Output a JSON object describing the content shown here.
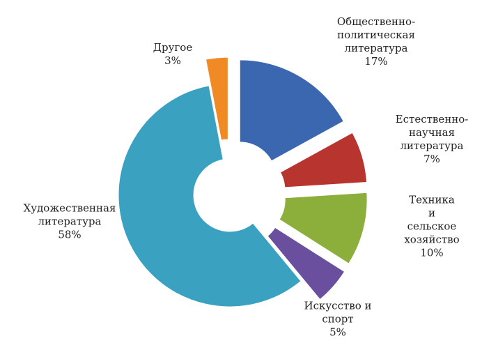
{
  "chart_data": {
    "type": "donut",
    "categories": [
      "Общественно-\nполитическая\nлитература",
      "Естественно-\nнаучная\nлитература",
      "Техника и\nсельское\nхозяйство",
      "Искусство и\nспорт",
      "Художественная\nлитература",
      "Другое"
    ],
    "values": [
      17,
      7,
      10,
      5,
      58,
      3
    ],
    "value_labels": [
      "17%",
      "7%",
      "10%",
      "5%",
      "58%",
      "3%"
    ],
    "colors": [
      "#3b67b1",
      "#b8342f",
      "#8cae3b",
      "#6a4f9e",
      "#3aa1c1",
      "#f08a24"
    ]
  }
}
